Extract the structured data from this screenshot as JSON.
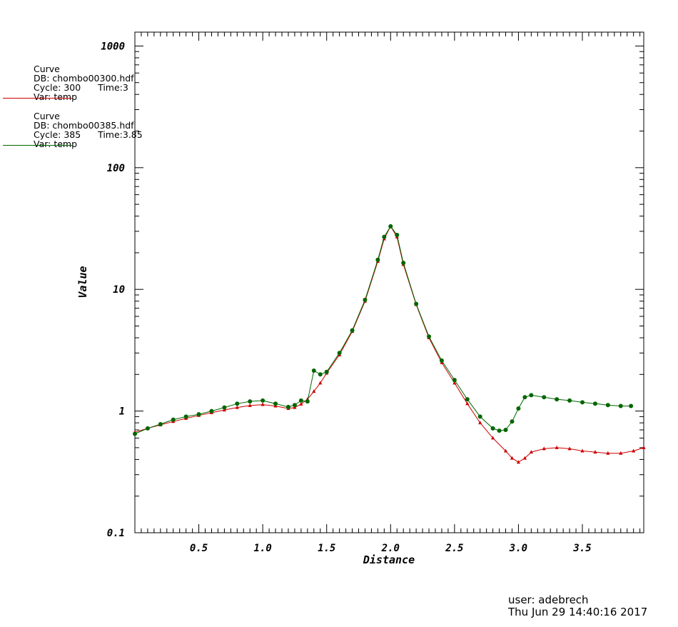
{
  "legend": [
    {
      "title": "Curve",
      "db": "DB: chombo00300.hdf",
      "cycle": "Cycle: 300",
      "time": "Time:3",
      "var": "Var: temp",
      "color": "#cc0000"
    },
    {
      "title": "Curve",
      "db": "DB: chombo00385.hdf",
      "cycle": "Cycle: 385",
      "time": "Time:3.85",
      "var": "Var: temp",
      "color": "#006600"
    }
  ],
  "footer": {
    "user": "user: adebrech",
    "date": "Thu Jun 29 14:40:16 2017"
  },
  "chart_data": {
    "type": "line",
    "xlabel": "Distance",
    "ylabel": "Value",
    "xlim": [
      0,
      3.98
    ],
    "ylim": [
      0.1,
      1300
    ],
    "yscale": "log",
    "xticks": [
      0.5,
      1.0,
      1.5,
      2.0,
      2.5,
      3.0,
      3.5
    ],
    "xtick_labels": [
      "0.5",
      "1.0",
      "1.5",
      "2.0",
      "2.5",
      "3.0",
      "3.5"
    ],
    "yticks": [
      0.1,
      1,
      10,
      100,
      1000
    ],
    "ytick_labels": [
      "0.1",
      "1",
      "10",
      "100",
      "1000"
    ],
    "grid": false,
    "series": [
      {
        "name": "chombo00300.hdf",
        "color": "#cc0000",
        "marker": "triangle",
        "x": [
          0,
          0.1,
          0.2,
          0.3,
          0.4,
          0.5,
          0.6,
          0.7,
          0.8,
          0.9,
          1.0,
          1.1,
          1.2,
          1.25,
          1.3,
          1.35,
          1.4,
          1.45,
          1.5,
          1.6,
          1.7,
          1.8,
          1.9,
          1.95,
          2.0,
          2.05,
          2.1,
          2.2,
          2.3,
          2.4,
          2.5,
          2.6,
          2.7,
          2.8,
          2.9,
          2.95,
          3.0,
          3.05,
          3.1,
          3.2,
          3.3,
          3.4,
          3.5,
          3.6,
          3.7,
          3.8,
          3.9,
          3.98
        ],
        "y": [
          0.67,
          0.72,
          0.77,
          0.82,
          0.87,
          0.92,
          0.97,
          1.02,
          1.07,
          1.11,
          1.13,
          1.1,
          1.05,
          1.07,
          1.14,
          1.25,
          1.45,
          1.7,
          2.05,
          2.9,
          4.5,
          8.0,
          17,
          26,
          33,
          27,
          16,
          7.5,
          4.0,
          2.5,
          1.7,
          1.15,
          0.8,
          0.6,
          0.47,
          0.41,
          0.38,
          0.41,
          0.46,
          0.49,
          0.5,
          0.49,
          0.47,
          0.46,
          0.45,
          0.45,
          0.47,
          0.5
        ]
      },
      {
        "name": "chombo00385.hdf",
        "color": "#006600",
        "marker": "circle",
        "x": [
          0,
          0.1,
          0.2,
          0.3,
          0.4,
          0.5,
          0.6,
          0.7,
          0.8,
          0.9,
          1.0,
          1.1,
          1.2,
          1.25,
          1.3,
          1.35,
          1.4,
          1.45,
          1.5,
          1.6,
          1.7,
          1.8,
          1.9,
          1.95,
          2.0,
          2.05,
          2.1,
          2.2,
          2.3,
          2.4,
          2.5,
          2.6,
          2.7,
          2.8,
          2.85,
          2.9,
          2.95,
          3.0,
          3.05,
          3.1,
          3.2,
          3.3,
          3.4,
          3.5,
          3.6,
          3.7,
          3.8,
          3.88
        ],
        "y": [
          0.65,
          0.72,
          0.78,
          0.85,
          0.9,
          0.94,
          1.0,
          1.07,
          1.15,
          1.2,
          1.22,
          1.15,
          1.08,
          1.12,
          1.22,
          1.2,
          2.15,
          2.0,
          2.1,
          3.0,
          4.6,
          8.2,
          17.5,
          27,
          33,
          28,
          16.5,
          7.6,
          4.1,
          2.6,
          1.8,
          1.25,
          0.9,
          0.72,
          0.69,
          0.7,
          0.82,
          1.05,
          1.3,
          1.35,
          1.3,
          1.25,
          1.22,
          1.18,
          1.15,
          1.12,
          1.1,
          1.1
        ]
      }
    ]
  }
}
